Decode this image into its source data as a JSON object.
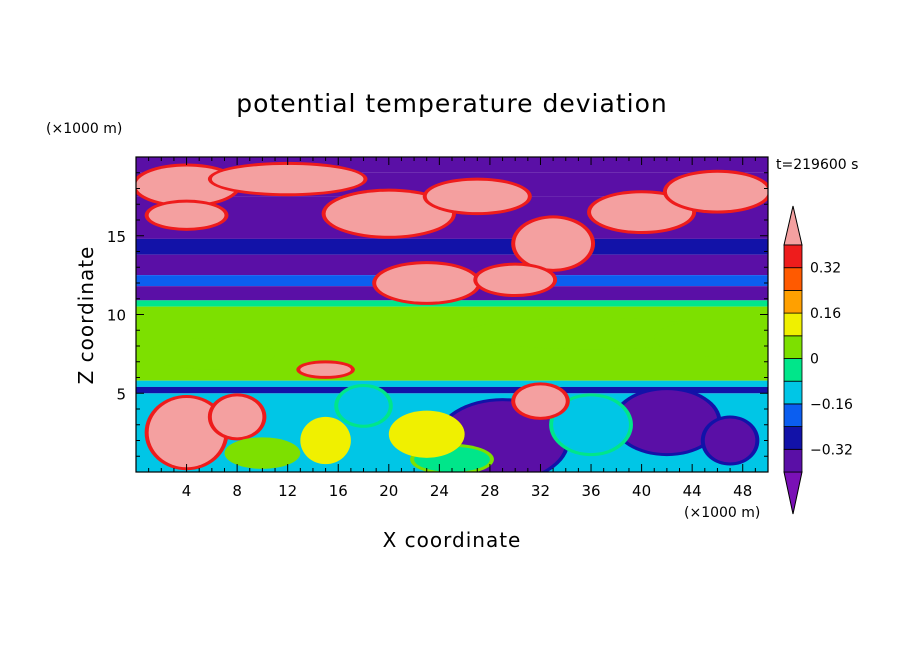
{
  "chart_data": {
    "type": "heatmap",
    "title": "potential temperature deviation",
    "time_label": "t=219600 s",
    "xlabel": "X coordinate",
    "ylabel": "Z coordinate",
    "x_unit": "(×1000 m)",
    "y_unit": "(×1000 m)",
    "xlim": [
      0,
      50
    ],
    "ylim": [
      0,
      20
    ],
    "x_ticks": [
      4,
      8,
      12,
      16,
      20,
      24,
      28,
      32,
      36,
      40,
      44,
      48
    ],
    "x_tick_labels": [
      "4",
      "8",
      "12",
      "16",
      "20",
      "24",
      "28",
      "32",
      "36",
      "40",
      "44",
      "48"
    ],
    "y_ticks": [
      5,
      10,
      15
    ],
    "y_tick_labels": [
      "5",
      "10",
      "15"
    ],
    "colorbar": {
      "levels": [
        -0.4,
        -0.32,
        -0.24,
        -0.16,
        -0.08,
        0,
        0.08,
        0.16,
        0.24,
        0.32,
        0.4
      ],
      "colors": [
        "#7a10b6",
        "#5a0fa6",
        "#1212a8",
        "#0b5ef0",
        "#00c6e6",
        "#00e68a",
        "#7de000",
        "#f0f000",
        "#ffa000",
        "#ff5a00",
        "#ee1c1c",
        "#f4a0a0"
      ],
      "labels": [
        "0.32",
        "0.16",
        "0",
        "−0.16",
        "−0.32"
      ],
      "extend": "both"
    },
    "layers": [
      {
        "z_range": [
          19.0,
          20.0
        ],
        "value": -0.38
      },
      {
        "z_range": [
          17.5,
          19.0
        ],
        "value": -0.36
      },
      {
        "z_range": [
          14.8,
          17.5
        ],
        "value": -0.33
      },
      {
        "z_range": [
          13.8,
          14.8
        ],
        "value": -0.28
      },
      {
        "z_range": [
          12.5,
          13.8
        ],
        "value": -0.36
      },
      {
        "z_range": [
          11.8,
          12.5
        ],
        "value": -0.24
      },
      {
        "z_range": [
          10.9,
          11.8
        ],
        "value": -0.36
      },
      {
        "z_range": [
          10.5,
          10.9
        ],
        "value": -0.05
      },
      {
        "z_range": [
          5.8,
          10.5
        ],
        "value": 0.02
      },
      {
        "z_range": [
          5.4,
          5.8
        ],
        "value": -0.1
      },
      {
        "z_range": [
          5.0,
          5.4
        ],
        "value": -0.3
      }
    ],
    "warm_blobs": [
      {
        "x": 4,
        "z": 18.2,
        "rx": 4,
        "rz": 1.2,
        "value": 0.42
      },
      {
        "x": 12,
        "z": 18.6,
        "rx": 6,
        "rz": 0.9,
        "value": 0.42
      },
      {
        "x": 20,
        "z": 16.4,
        "rx": 5,
        "rz": 1.4,
        "value": 0.42
      },
      {
        "x": 27,
        "z": 17.5,
        "rx": 4,
        "rz": 1.0,
        "value": 0.42
      },
      {
        "x": 33,
        "z": 14.5,
        "rx": 3,
        "rz": 1.6,
        "value": 0.42
      },
      {
        "x": 40,
        "z": 16.5,
        "rx": 4,
        "rz": 1.2,
        "value": 0.42
      },
      {
        "x": 46,
        "z": 17.8,
        "rx": 4,
        "rz": 1.2,
        "value": 0.42
      },
      {
        "x": 4,
        "z": 16.3,
        "rx": 3,
        "rz": 0.8,
        "value": 0.42
      },
      {
        "x": 23,
        "z": 12.0,
        "rx": 4,
        "rz": 1.2,
        "value": 0.42
      },
      {
        "x": 30,
        "z": 12.2,
        "rx": 3,
        "rz": 0.9,
        "value": 0.42
      },
      {
        "x": 4,
        "z": 2.5,
        "rx": 3,
        "rz": 2.2,
        "value": 0.42
      },
      {
        "x": 8,
        "z": 3.5,
        "rx": 2,
        "rz": 1.3,
        "value": 0.42
      },
      {
        "x": 32,
        "z": 4.5,
        "rx": 2,
        "rz": 1.0,
        "value": 0.42
      },
      {
        "x": 15,
        "z": 2.0,
        "rx": 2,
        "rz": 1.5,
        "value": 0.12
      },
      {
        "x": 23,
        "z": 2.4,
        "rx": 3,
        "rz": 1.5,
        "value": 0.1
      },
      {
        "x": 10,
        "z": 1.2,
        "rx": 3,
        "rz": 1.0,
        "value": 0.06
      },
      {
        "x": 36,
        "z": 8.8,
        "rx": 10,
        "rz": 1.0,
        "value": 0.06
      },
      {
        "x": 46,
        "z": 8.5,
        "rx": 5,
        "rz": 1.2,
        "value": 0.06
      },
      {
        "x": 6,
        "z": 7.5,
        "rx": 5,
        "rz": 1.0,
        "value": 0.06
      },
      {
        "x": 15,
        "z": 6.5,
        "rx": 2,
        "rz": 0.4,
        "value": 0.42
      }
    ],
    "cold_blobs": [
      {
        "x": 29,
        "z": 2.0,
        "rx": 5,
        "rz": 2.5,
        "value": -0.36
      },
      {
        "x": 42,
        "z": 3.2,
        "rx": 4,
        "rz": 2.0,
        "value": -0.38
      },
      {
        "x": 47,
        "z": 2.0,
        "rx": 2,
        "rz": 1.4,
        "value": -0.36
      },
      {
        "x": 18,
        "z": 4.2,
        "rx": 2,
        "rz": 1.2,
        "value": -0.15
      },
      {
        "x": 36,
        "z": 3.0,
        "rx": 3,
        "rz": 1.8,
        "value": -0.14
      },
      {
        "x": 25,
        "z": 0.8,
        "rx": 3,
        "rz": 0.8,
        "value": -0.08
      }
    ]
  }
}
